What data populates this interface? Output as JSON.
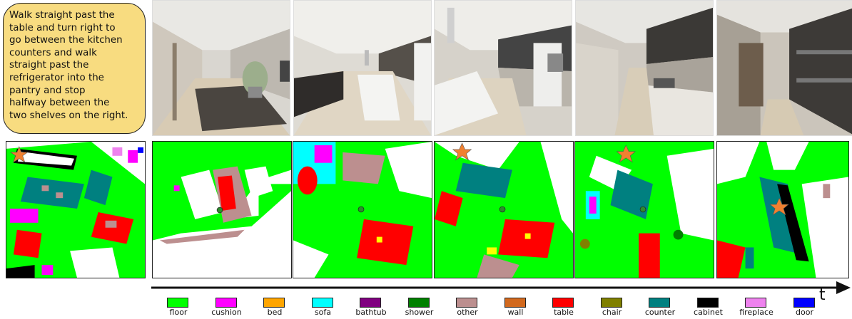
{
  "instruction": {
    "lines": [
      "Walk straight past the",
      "table and turn right to",
      "go between the kitchen",
      "counters and walk",
      "straight past the",
      "refrigerator into the",
      "pantry and stop",
      "halfway between the",
      "two shelves on the right."
    ]
  },
  "timeline": {
    "axis_label": "t"
  },
  "legend": [
    {
      "label": "floor",
      "color": "#00ff00"
    },
    {
      "label": "cushion",
      "color": "#ff00ff"
    },
    {
      "label": "bed",
      "color": "#ffa500"
    },
    {
      "label": "sofa",
      "color": "#00ffff"
    },
    {
      "label": "bathtub",
      "color": "#800080"
    },
    {
      "label": "shower",
      "color": "#008000"
    },
    {
      "label": "other",
      "color": "#bc8f8f"
    },
    {
      "label": "wall",
      "color": "#d2691e"
    },
    {
      "label": "table",
      "color": "#ff0000"
    },
    {
      "label": "chair",
      "color": "#808000"
    },
    {
      "label": "counter",
      "color": "#008080"
    },
    {
      "label": "cabinet",
      "color": "#000000"
    },
    {
      "label": "fireplace",
      "color": "#ee82ee"
    },
    {
      "label": "door",
      "color": "#0000ff"
    }
  ],
  "colors": {
    "instruction_bg": "#f8dc80",
    "goal_star": "#f08030",
    "agent_marker": "#2e8b2e"
  }
}
